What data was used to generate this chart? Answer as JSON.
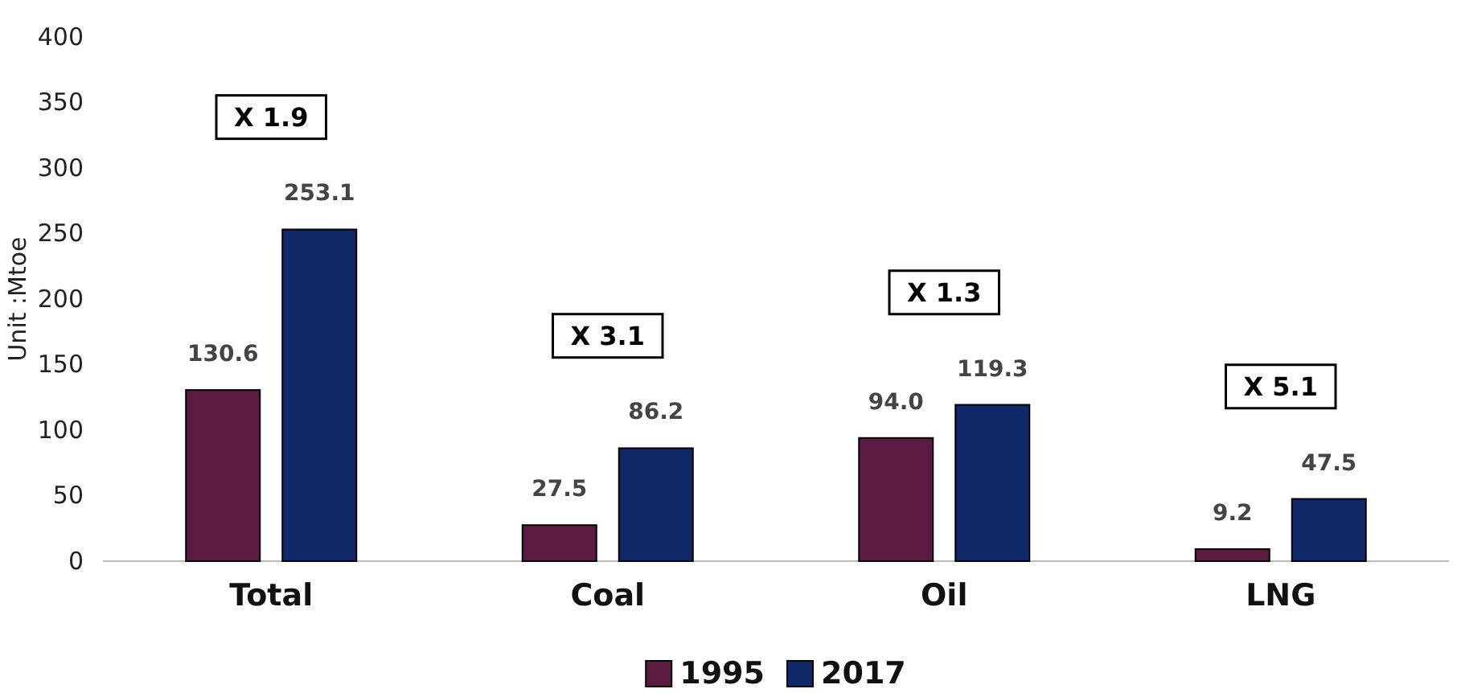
{
  "chart_data": {
    "type": "bar",
    "ylabel": "Unit :Mtoe",
    "categories": [
      "Total",
      "Coal",
      "Oil",
      "LNG"
    ],
    "series": [
      {
        "name": "1995",
        "color": "#5b1a3f",
        "values": [
          130.6,
          27.5,
          94.0,
          9.2
        ],
        "value_labels": [
          "130.6",
          "27.5",
          "94.0",
          "9.2"
        ]
      },
      {
        "name": "2017",
        "color": "#0f2868",
        "values": [
          253.1,
          86.2,
          119.3,
          47.5
        ],
        "value_labels": [
          "253.1",
          "86.2",
          "119.3",
          "47.5"
        ]
      }
    ],
    "ylim": [
      0,
      400
    ],
    "yticks": [
      0,
      50,
      100,
      150,
      200,
      250,
      300,
      350,
      400
    ],
    "grid": false,
    "legend": "bottom",
    "annotations": [
      "X 1.9",
      "X 3.1",
      "X 1.3",
      "X 5.1"
    ]
  }
}
